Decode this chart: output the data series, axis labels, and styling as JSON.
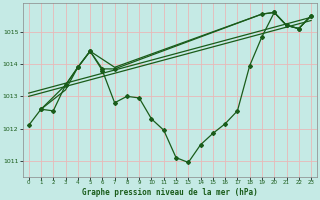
{
  "title": "Graphe pression niveau de la mer (hPa)",
  "bg_color": "#c5eae5",
  "grid_color": "#e8b8b8",
  "line_color": "#1a5c1a",
  "xlim": [
    -0.5,
    23.5
  ],
  "ylim": [
    1010.5,
    1015.9
  ],
  "yticks": [
    1011,
    1012,
    1013,
    1014,
    1015
  ],
  "xticks": [
    0,
    1,
    2,
    3,
    4,
    5,
    6,
    7,
    8,
    9,
    10,
    11,
    12,
    13,
    14,
    15,
    16,
    17,
    18,
    19,
    20,
    21,
    22,
    23
  ],
  "series_main": {
    "x": [
      0,
      1,
      2,
      3,
      4,
      5,
      6,
      7,
      8,
      9,
      10,
      11,
      12,
      13,
      14,
      15,
      16,
      17,
      18,
      19,
      20,
      21,
      22,
      23
    ],
    "y": [
      1012.1,
      1012.6,
      1012.55,
      1013.35,
      1013.9,
      1014.4,
      1013.8,
      1012.8,
      1013.0,
      1012.95,
      1012.3,
      1011.95,
      1011.1,
      1010.95,
      1011.5,
      1011.85,
      1012.15,
      1012.55,
      1013.95,
      1014.85,
      1015.6,
      1015.2,
      1015.1,
      1015.5
    ]
  },
  "series_upper1": {
    "x": [
      1,
      3,
      4,
      5,
      6,
      7,
      19,
      20,
      21,
      22,
      23
    ],
    "y": [
      1012.6,
      1013.35,
      1013.9,
      1014.4,
      1013.85,
      1013.85,
      1015.55,
      1015.6,
      1015.2,
      1015.1,
      1015.5
    ]
  },
  "series_upper2": {
    "x": [
      1,
      3,
      4,
      5,
      7,
      19,
      20,
      21,
      22,
      23
    ],
    "y": [
      1012.6,
      1013.2,
      1013.9,
      1014.4,
      1013.9,
      1015.55,
      1015.6,
      1015.2,
      1015.1,
      1015.5
    ]
  },
  "trend_line1": {
    "x": [
      0,
      23
    ],
    "y": [
      1013.0,
      1015.35
    ]
  },
  "trend_line2": {
    "x": [
      0,
      23
    ],
    "y": [
      1013.1,
      1015.45
    ]
  }
}
